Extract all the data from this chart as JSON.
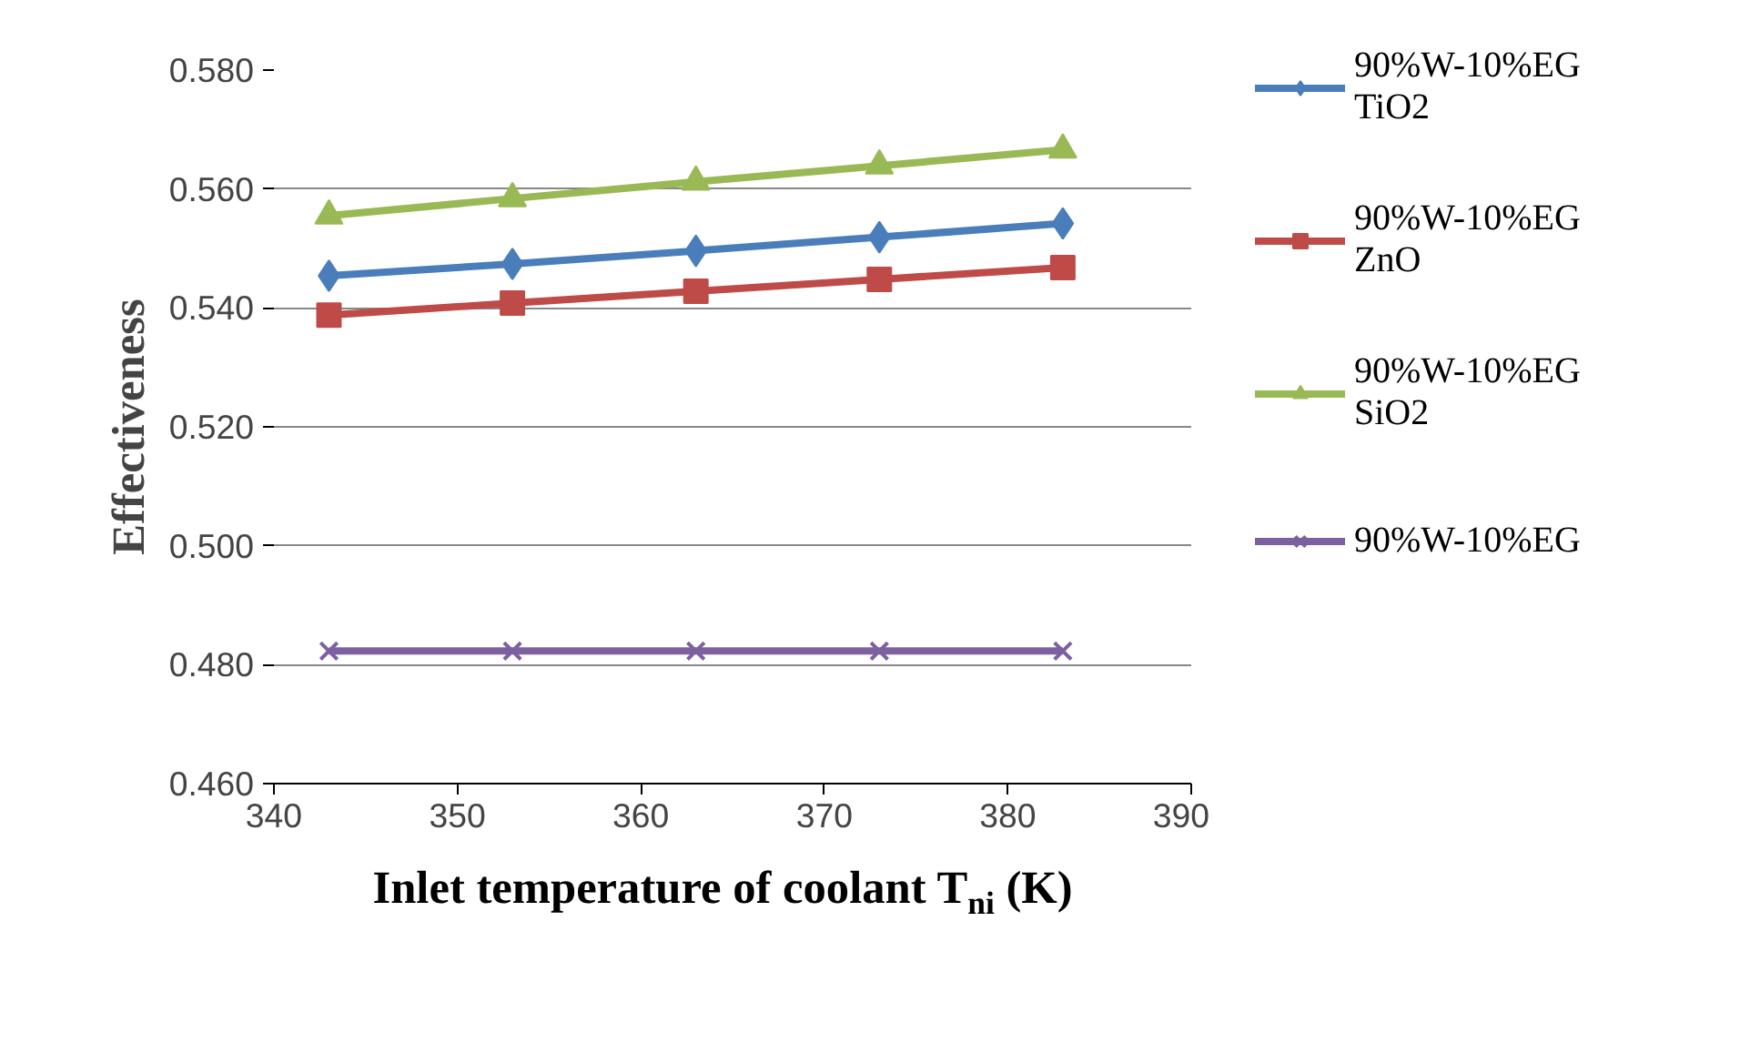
{
  "chart_data": {
    "type": "line",
    "xlabel": "Inlet temperature of coolant T$_{ni}$ (K)",
    "ylabel": "Effectiveness",
    "x": [
      343,
      353,
      363,
      373,
      383
    ],
    "xlim": [
      340,
      390
    ],
    "xticks": [
      340,
      350,
      360,
      370,
      380,
      390
    ],
    "ylim": [
      0.46,
      0.58
    ],
    "yticks": [
      {
        "value": 0.46,
        "label": "0.460"
      },
      {
        "value": 0.48,
        "label": "0.480"
      },
      {
        "value": 0.5,
        "label": "0.500"
      },
      {
        "value": 0.52,
        "label": "0.520"
      },
      {
        "value": 0.54,
        "label": "0.540"
      },
      {
        "value": 0.56,
        "label": "0.560"
      },
      {
        "value": 0.58,
        "label": "0.580"
      }
    ],
    "grid": "y",
    "legend": "right",
    "line_style": "solid",
    "series": [
      {
        "name": "90%W-10%EG TiO2",
        "color": "#4a7ebb",
        "marker": "diamond",
        "values": [
          0.5454,
          0.5474,
          0.5496,
          0.5519,
          0.5542
        ]
      },
      {
        "name": "90%W-10%EG ZnO",
        "color": "#be4b48",
        "marker": "square",
        "values": [
          0.5388,
          0.5408,
          0.5428,
          0.5448,
          0.5468
        ]
      },
      {
        "name": "90%W-10%EG SiO2",
        "color": "#98b954",
        "marker": "triangle",
        "values": [
          0.5555,
          0.5584,
          0.5612,
          0.5639,
          0.5666
        ]
      },
      {
        "name": "90%W-10%EG",
        "color": "#7d60a0",
        "marker": "cross",
        "values": [
          0.4823,
          0.4823,
          0.4823,
          0.4823,
          0.4823
        ]
      }
    ]
  }
}
